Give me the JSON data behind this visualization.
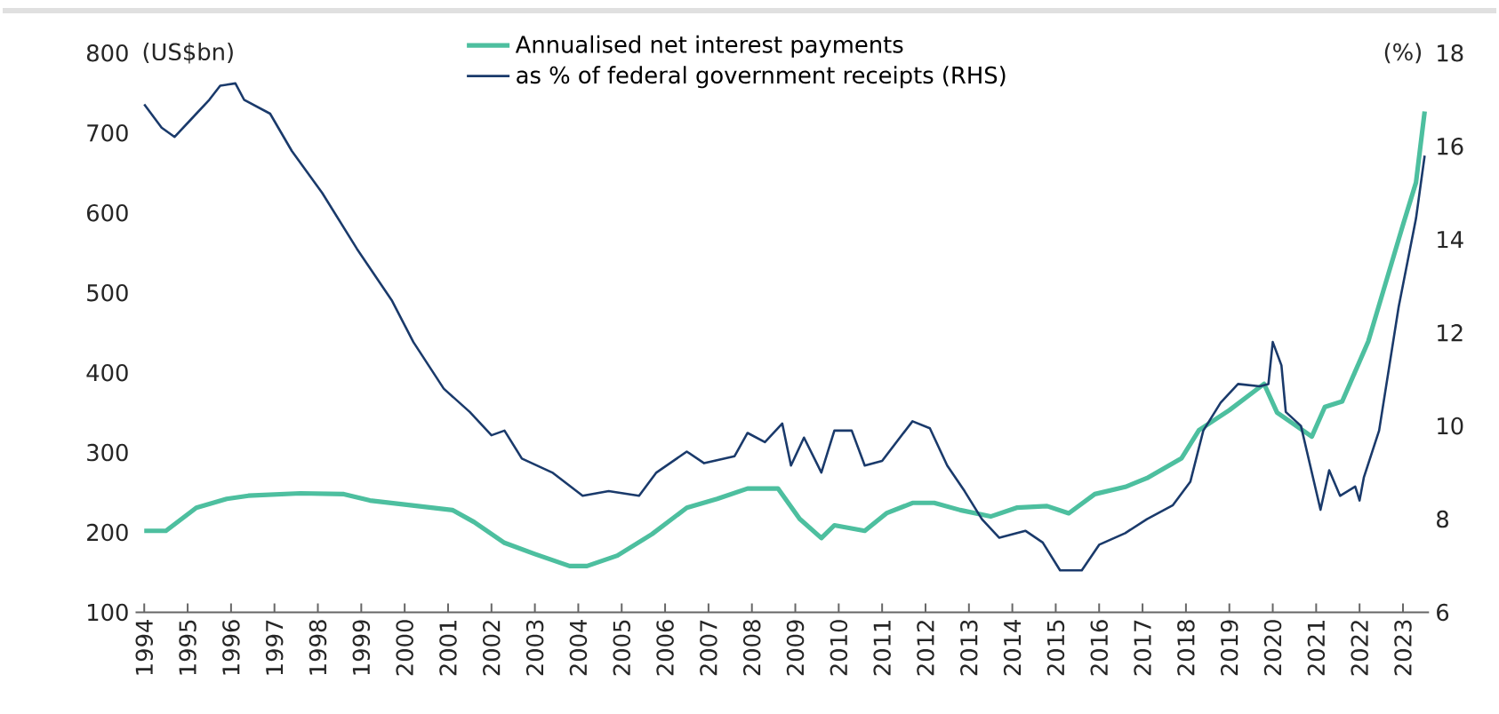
{
  "chart_data": {
    "type": "line",
    "ylabel": "(US$bn)",
    "y2label": "(%)",
    "legend": "top",
    "line_style": "solid",
    "xlim": [
      1993.8,
      2023.6
    ],
    "xticks": [
      1994,
      1995,
      1996,
      1997,
      1998,
      1999,
      2000,
      2001,
      2002,
      2003,
      2004,
      2005,
      2006,
      2007,
      2008,
      2009,
      2010,
      2011,
      2012,
      2013,
      2014,
      2015,
      2016,
      2017,
      2018,
      2019,
      2020,
      2021,
      2022,
      2023
    ],
    "ylim": [
      100,
      800
    ],
    "yticks": [
      100,
      200,
      300,
      400,
      500,
      600,
      700,
      800
    ],
    "y2lim": [
      6,
      18
    ],
    "y2ticks": [
      6,
      8,
      10,
      12,
      14,
      16,
      18
    ],
    "series": [
      {
        "name": "Annualised net interest payments",
        "color": "#4dbf9f",
        "x": [
          1994.0,
          1994.5,
          1995.2,
          1995.9,
          1996.4,
          1997.6,
          1998.6,
          1999.2,
          2000.0,
          2001.1,
          2001.6,
          2002.3,
          2003.0,
          2003.8,
          2004.2,
          2004.9,
          2005.7,
          2006.5,
          2007.2,
          2007.9,
          2008.6,
          2009.1,
          2009.6,
          2009.9,
          2010.6,
          2011.1,
          2011.7,
          2012.2,
          2012.8,
          2013.5,
          2014.1,
          2014.8,
          2015.3,
          2015.9,
          2016.6,
          2017.1,
          2017.9,
          2018.3,
          2019.0,
          2019.8,
          2020.1,
          2020.9,
          2021.2,
          2021.6,
          2022.2,
          2022.6,
          2023.0,
          2023.3,
          2023.5
        ],
        "values": [
          202,
          202,
          231,
          242,
          246,
          249,
          248,
          240,
          235,
          228,
          213,
          187,
          173,
          158,
          158,
          171,
          198,
          231,
          242,
          255,
          255,
          217,
          193,
          209,
          202,
          224,
          237,
          237,
          228,
          220,
          231,
          233,
          224,
          248,
          257,
          268,
          293,
          328,
          353,
          386,
          350,
          320,
          357,
          364,
          439,
          512,
          585,
          638,
          727
        ]
      },
      {
        "name": "as % of federal government receipts (RHS)",
        "color": "#1a3a6b",
        "axis": "y2",
        "x": [
          1994.0,
          1994.4,
          1994.7,
          1995.1,
          1995.5,
          1995.75,
          1996.1,
          1996.3,
          1996.9,
          1997.4,
          1998.1,
          1998.9,
          1999.7,
          2000.2,
          2000.9,
          2001.5,
          2002.0,
          2002.3,
          2002.7,
          2003.4,
          2004.1,
          2004.7,
          2005.4,
          2005.8,
          2006.5,
          2006.9,
          2007.6,
          2007.9,
          2008.3,
          2008.7,
          2008.9,
          2009.2,
          2009.6,
          2009.9,
          2010.3,
          2010.6,
          2011.0,
          2011.7,
          2012.1,
          2012.5,
          2012.9,
          2013.3,
          2013.7,
          2014.3,
          2014.7,
          2015.1,
          2015.6,
          2016.0,
          2016.6,
          2017.1,
          2017.7,
          2018.1,
          2018.4,
          2018.8,
          2019.2,
          2019.7,
          2019.9,
          2020.0,
          2020.2,
          2020.3,
          2020.65,
          2021.1,
          2021.3,
          2021.55,
          2021.9,
          2022.0,
          2022.1,
          2022.45,
          2022.9,
          2023.3,
          2023.5
        ],
        "values": [
          16.9,
          16.4,
          16.2,
          16.6,
          17.0,
          17.3,
          17.35,
          17.0,
          16.7,
          15.9,
          15.0,
          13.8,
          12.7,
          11.8,
          10.8,
          10.3,
          9.8,
          9.9,
          9.3,
          9.0,
          8.5,
          8.6,
          8.5,
          9.0,
          9.45,
          9.2,
          9.35,
          9.85,
          9.65,
          10.05,
          9.15,
          9.75,
          9.0,
          9.9,
          9.9,
          9.15,
          9.25,
          10.1,
          9.95,
          9.15,
          8.6,
          8.0,
          7.6,
          7.75,
          7.5,
          6.9,
          6.9,
          7.45,
          7.7,
          8.0,
          8.3,
          8.8,
          9.9,
          10.5,
          10.9,
          10.85,
          10.9,
          11.8,
          11.3,
          10.3,
          10.0,
          8.2,
          9.05,
          8.5,
          8.7,
          8.4,
          8.9,
          9.9,
          12.55,
          14.45,
          15.8
        ]
      }
    ]
  }
}
